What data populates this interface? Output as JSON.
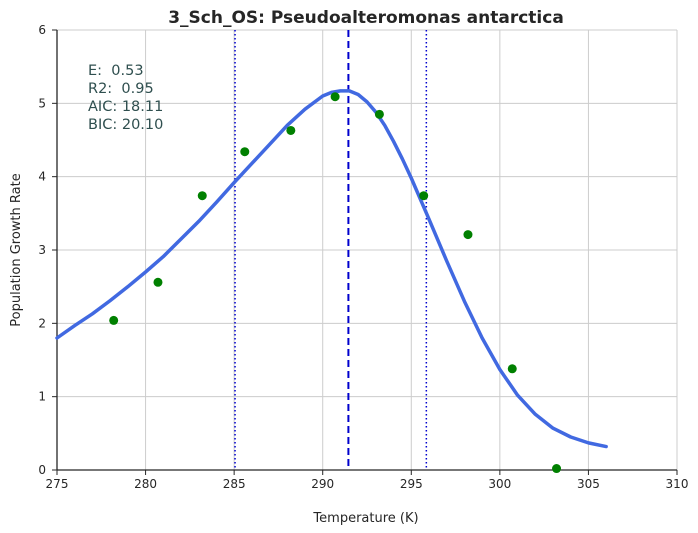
{
  "chart_data": {
    "type": "scatter",
    "title": "3_Sch_OS: Pseudoalteromonas antarctica",
    "xlabel": "Temperature (K)",
    "ylabel": "Population Growth Rate",
    "xlim": [
      275,
      310
    ],
    "ylim": [
      0,
      6
    ],
    "xticks": [
      275,
      280,
      285,
      290,
      295,
      300,
      305,
      310
    ],
    "xtick_labels": [
      "275",
      "280",
      "285",
      "290",
      "295",
      "300",
      "305",
      "310"
    ],
    "yticks": [
      0,
      1,
      2,
      3,
      4,
      5,
      6
    ],
    "ytick_labels": [
      "0",
      "1",
      "2",
      "3",
      "4",
      "5",
      "6"
    ],
    "grid": true,
    "stats": [
      "E:  0.53",
      "R2:  0.95",
      "AIC: 18.11",
      "BIC: 20.10"
    ],
    "points": {
      "color": "#008000",
      "x": [
        278.2,
        280.7,
        283.2,
        285.6,
        288.2,
        290.7,
        293.2,
        295.7,
        298.2,
        300.7,
        303.2
      ],
      "y": [
        2.04,
        2.56,
        3.74,
        4.34,
        4.63,
        5.09,
        4.85,
        3.74,
        3.21,
        1.38,
        0.02
      ]
    },
    "fit_curve": {
      "color": "#4169E1",
      "x": [
        275,
        276,
        277,
        278,
        279,
        280,
        281,
        282,
        283,
        284,
        285,
        286,
        287,
        288,
        289,
        290,
        290.5,
        291,
        291.5,
        292,
        292.5,
        293,
        293.5,
        294,
        294.5,
        295,
        296,
        297,
        298,
        299,
        300,
        301,
        302,
        303,
        304,
        305,
        306
      ],
      "y": [
        1.8,
        1.97,
        2.13,
        2.31,
        2.5,
        2.7,
        2.91,
        3.15,
        3.39,
        3.65,
        3.92,
        4.18,
        4.44,
        4.7,
        4.92,
        5.1,
        5.15,
        5.17,
        5.17,
        5.12,
        5.02,
        4.88,
        4.7,
        4.48,
        4.24,
        3.98,
        3.42,
        2.85,
        2.3,
        1.8,
        1.37,
        1.02,
        0.76,
        0.57,
        0.45,
        0.37,
        0.32
      ]
    },
    "vlines": [
      {
        "x": 285.05,
        "style": "dotted",
        "color": "#0000CD"
      },
      {
        "x": 291.45,
        "style": "dashed",
        "color": "#0000CD"
      },
      {
        "x": 295.85,
        "style": "dotted",
        "color": "#0000CD"
      }
    ],
    "grid_color": "#cccccc",
    "axis_color": "#262626"
  }
}
